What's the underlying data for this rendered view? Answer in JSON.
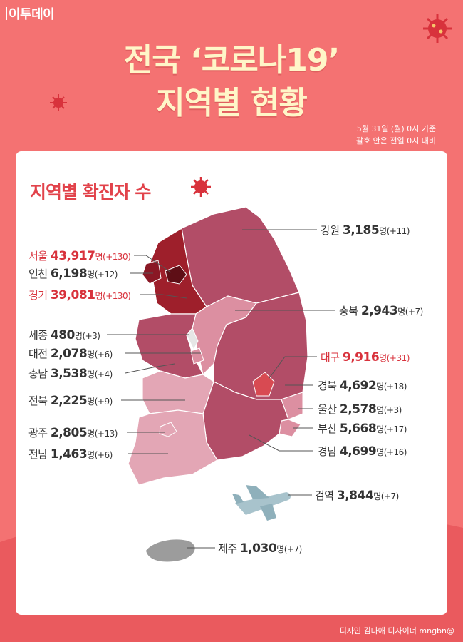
{
  "brand": "이투데이",
  "title_line1": "전국 ‘코로나19’",
  "title_line2": "지역별 현황",
  "basis_line1": "5월 31일 (월) 0시 기준",
  "basis_line2": "괄호 안은 전일 0시 대비",
  "subtitle": "지역별 확진자 수",
  "unit": "명",
  "regions": [
    {
      "name": "강원",
      "count": "3,185",
      "change": "(+11)"
    },
    {
      "name": "서울",
      "count": "43,917",
      "change": "(+130)",
      "highlight": true
    },
    {
      "name": "인천",
      "count": "6,198",
      "change": "(+12)"
    },
    {
      "name": "경기",
      "count": "39,081",
      "change": "(+130)",
      "highlight": true
    },
    {
      "name": "충북",
      "count": "2,943",
      "change": "(+7)"
    },
    {
      "name": "세종",
      "count": "480",
      "change": "(+3)"
    },
    {
      "name": "대구",
      "count": "9,916",
      "change": "(+31)",
      "highlight": true
    },
    {
      "name": "대전",
      "count": "2,078",
      "change": "(+6)"
    },
    {
      "name": "충남",
      "count": "3,538",
      "change": "(+4)"
    },
    {
      "name": "경북",
      "count": "4,692",
      "change": "(+18)"
    },
    {
      "name": "전북",
      "count": "2,225",
      "change": "(+9)"
    },
    {
      "name": "울산",
      "count": "2,578",
      "change": "(+3)"
    },
    {
      "name": "부산",
      "count": "5,668",
      "change": "(+17)"
    },
    {
      "name": "광주",
      "count": "2,805",
      "change": "(+13)"
    },
    {
      "name": "경남",
      "count": "4,699",
      "change": "(+16)"
    },
    {
      "name": "전남",
      "count": "1,463",
      "change": "(+6)"
    },
    {
      "name": "검역",
      "count": "3,844",
      "change": "(+7)"
    },
    {
      "name": "제주",
      "count": "1,030",
      "change": "(+7)"
    }
  ],
  "credit": "디자인 김다애 디자이너 mngbn@",
  "colors": {
    "background": "#f47272",
    "title": "#fff6c8",
    "accent": "#e2434b",
    "gangwon": "#b24d67",
    "capital": "#9e1f2b",
    "chungcheong": "#dc8fa1",
    "honam": "#e3a6b5"
  }
}
